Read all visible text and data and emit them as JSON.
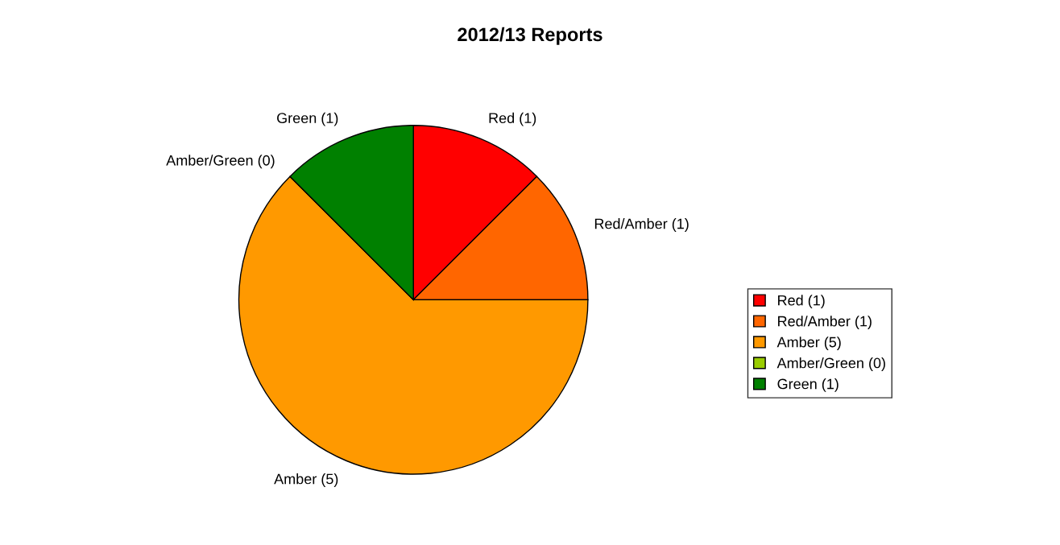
{
  "chart_data": {
    "type": "pie",
    "title": "2012/13 Reports",
    "categories": [
      "Red (1)",
      "Red/Amber (1)",
      "Amber (5)",
      "Amber/Green (0)",
      "Green (1)"
    ],
    "values": [
      1,
      1,
      5,
      0,
      1
    ],
    "colors": [
      "#ff0000",
      "#ff6600",
      "#ff9900",
      "#99cc00",
      "#008000"
    ],
    "legend": "right"
  }
}
